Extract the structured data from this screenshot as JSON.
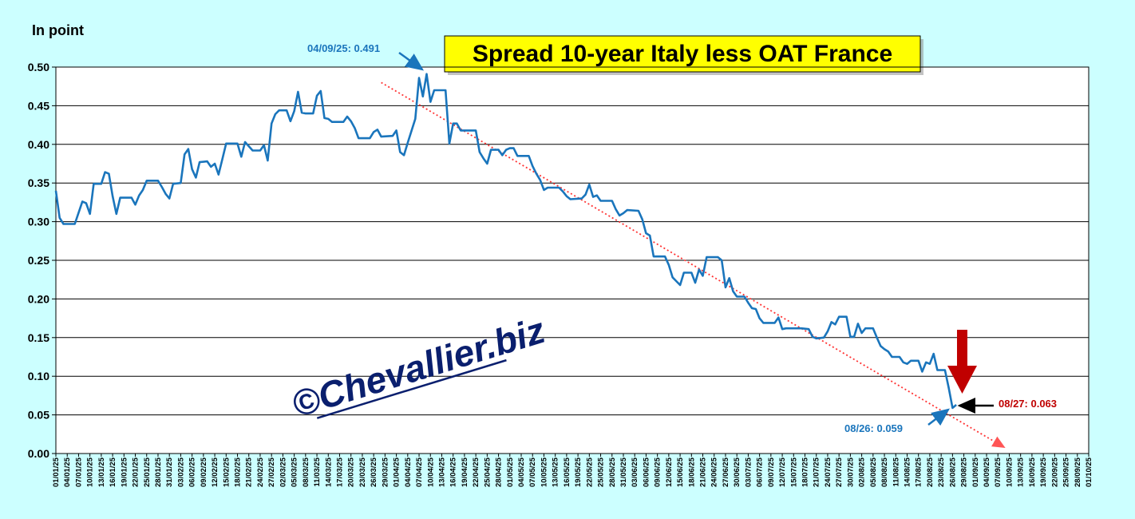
{
  "chart_data": {
    "type": "line",
    "title": "Spread 10-year Italy less OAT France",
    "y_label": "In point",
    "watermark": "©Chevallier.biz",
    "annotations": [
      "04/09/25: 0.491",
      "08/26: 0.059",
      "08/27: 0.063"
    ],
    "ylim": [
      0,
      0.5
    ],
    "yticks": [
      {
        "value": 0,
        "label": "0.00"
      },
      0.05,
      {
        "value": 0.1,
        "label": "0.10"
      },
      0.15,
      {
        "value": 0.2,
        "label": "0.20"
      },
      0.25,
      {
        "value": 0.3,
        "label": "0.30"
      },
      0.35,
      {
        "value": 0.4,
        "label": "0.40"
      },
      0.45,
      {
        "value": 0.5,
        "label": "0.50"
      }
    ],
    "grid": true,
    "xlim": [
      "01/01/25",
      "01/10/25"
    ],
    "xticks": [
      "01/01/25",
      "04/01/25",
      "07/01/25",
      "10/01/25",
      "13/01/25",
      "16/01/25",
      "19/01/25",
      "22/01/25",
      "25/01/25",
      "28/01/25",
      "31/01/25",
      "03/02/25",
      "06/02/25",
      "09/02/25",
      "12/02/25",
      "15/02/25",
      "18/02/25",
      "21/02/25",
      "24/02/25",
      "27/02/25",
      "02/03/25",
      "05/03/25",
      "08/03/25",
      "11/03/25",
      "14/03/25",
      "17/03/25",
      "20/03/25",
      "23/03/25",
      "26/03/25",
      "29/03/25",
      "01/04/25",
      "04/04/25",
      "07/04/25",
      "10/04/25",
      "13/04/25",
      "16/04/25",
      "19/04/25",
      "22/04/25",
      "25/04/25",
      "28/04/25",
      "01/05/25",
      "04/05/25",
      "07/05/25",
      "10/05/25",
      "13/05/25",
      "16/05/25",
      "19/05/25",
      "22/05/25",
      "25/05/25",
      "28/05/25",
      "31/05/25",
      "03/06/25",
      "06/06/25",
      "09/06/25",
      "12/06/25",
      "15/06/25",
      "18/06/25",
      "21/06/25",
      "24/06/25",
      "27/06/25",
      "30/06/25",
      "03/07/25",
      "06/07/25",
      "09/07/25",
      "12/07/25",
      "15/07/25",
      "18/07/25",
      "21/07/25",
      "24/07/25",
      "27/07/25",
      "30/07/25",
      "02/08/25",
      "05/08/25",
      "08/08/25",
      "11/08/25",
      "14/08/25",
      "17/08/25",
      "20/08/25",
      "23/08/25",
      "26/08/25",
      "29/08/25",
      "01/09/25",
      "04/09/25",
      "07/09/25",
      "10/09/25",
      "13/09/25",
      "16/09/25",
      "19/09/25",
      "22/09/25",
      "25/09/25",
      "28/09/25",
      "01/10/25"
    ],
    "series": [
      {
        "color": "#1a75bc",
        "x": [
          "01/01/25",
          "02/01/25",
          "03/01/25",
          "06/01/25",
          "08/01/25",
          "09/01/25",
          "10/01/25",
          "11/01/25",
          "13/01/25",
          "14/01/25",
          "15/01/25",
          "16/01/25",
          "17/01/25",
          "18/01/25",
          "21/01/25",
          "22/01/25",
          "23/01/25",
          "24/01/25",
          "25/01/25",
          "28/01/25",
          "29/01/25",
          "30/01/25",
          "31/01/25",
          "01/02/25",
          "03/02/25",
          "04/02/25",
          "05/02/25",
          "06/02/25",
          "07/02/25",
          "08/02/25",
          "10/02/25",
          "11/02/25",
          "12/02/25",
          "13/02/25",
          "14/02/25",
          "15/02/25",
          "18/02/25",
          "19/02/25",
          "20/02/25",
          "22/02/25",
          "24/02/25",
          "25/02/25",
          "26/02/25",
          "27/02/25",
          "28/02/25",
          "01/03/25",
          "03/03/25",
          "04/03/25",
          "05/03/25",
          "06/03/25",
          "07/03/25",
          "08/03/25",
          "10/03/25",
          "11/03/25",
          "12/03/25",
          "13/03/25",
          "14/03/25",
          "15/03/25",
          "18/03/25",
          "19/03/25",
          "20/03/25",
          "21/03/25",
          "22/03/25",
          "25/03/25",
          "26/03/25",
          "27/03/25",
          "28/03/25",
          "31/03/25",
          "01/04/25",
          "02/04/25",
          "03/04/25",
          "04/04/25",
          "06/04/25",
          "07/04/25",
          "08/04/25",
          "09/04/25",
          "10/04/25",
          "11/04/25",
          "14/04/25",
          "15/04/25",
          "16/04/25",
          "17/04/25",
          "18/04/25",
          "22/04/25",
          "23/04/25",
          "24/04/25",
          "25/04/25",
          "26/04/25",
          "28/04/25",
          "29/04/25",
          "30/04/25",
          "01/05/25",
          "02/05/25",
          "03/05/25",
          "06/05/25",
          "07/05/25",
          "08/05/25",
          "09/05/25",
          "10/05/25",
          "11/05/25",
          "14/05/25",
          "15/05/25",
          "16/05/25",
          "17/05/25",
          "20/05/25",
          "21/05/25",
          "22/05/25",
          "23/05/25",
          "24/05/25",
          "25/05/25",
          "28/05/25",
          "29/05/25",
          "30/05/25",
          "31/05/25",
          "01/06/25",
          "04/06/25",
          "05/06/25",
          "06/06/25",
          "07/06/25",
          "08/06/25",
          "11/06/25",
          "12/06/25",
          "13/06/25",
          "14/06/25",
          "15/06/25",
          "16/06/25",
          "18/06/25",
          "19/06/25",
          "20/06/25",
          "21/06/25",
          "22/06/25",
          "25/06/25",
          "26/06/25",
          "27/06/25",
          "28/06/25",
          "29/06/25",
          "30/06/25",
          "02/07/25",
          "03/07/25",
          "04/07/25",
          "05/07/25",
          "06/07/25",
          "07/07/25",
          "10/07/25",
          "11/07/25",
          "12/07/25",
          "13/07/25",
          "17/07/25",
          "19/07/25",
          "20/07/25",
          "21/07/25",
          "23/07/25",
          "24/07/25",
          "25/07/25",
          "26/07/25",
          "27/07/25",
          "29/07/25",
          "30/07/25",
          "31/07/25",
          "01/08/25",
          "02/08/25",
          "03/08/25",
          "05/08/25",
          "06/08/25",
          "07/08/25",
          "08/08/25",
          "09/08/25",
          "10/08/25",
          "12/08/25",
          "13/08/25",
          "14/08/25",
          "15/08/25",
          "17/08/25",
          "18/08/25",
          "19/08/25",
          "20/08/25",
          "21/08/25",
          "22/08/25",
          "24/08/25",
          "25/08/25",
          "26/08/25",
          "27/08/25"
        ],
        "values": [
          0.34,
          0.305,
          0.297,
          0.297,
          0.326,
          0.324,
          0.31,
          0.349,
          0.349,
          0.364,
          0.362,
          0.333,
          0.31,
          0.331,
          0.331,
          0.322,
          0.334,
          0.341,
          0.353,
          0.353,
          0.345,
          0.336,
          0.33,
          0.349,
          0.35,
          0.387,
          0.394,
          0.368,
          0.357,
          0.377,
          0.378,
          0.371,
          0.375,
          0.361,
          0.381,
          0.401,
          0.401,
          0.384,
          0.403,
          0.392,
          0.392,
          0.399,
          0.379,
          0.427,
          0.439,
          0.444,
          0.444,
          0.43,
          0.443,
          0.468,
          0.441,
          0.44,
          0.44,
          0.463,
          0.469,
          0.434,
          0.433,
          0.429,
          0.429,
          0.436,
          0.43,
          0.421,
          0.408,
          0.408,
          0.416,
          0.419,
          0.41,
          0.411,
          0.418,
          0.39,
          0.386,
          0.402,
          0.433,
          0.486,
          0.462,
          0.491,
          0.455,
          0.47,
          0.47,
          0.401,
          0.427,
          0.427,
          0.418,
          0.418,
          0.39,
          0.382,
          0.375,
          0.393,
          0.393,
          0.386,
          0.393,
          0.395,
          0.395,
          0.385,
          0.385,
          0.372,
          0.362,
          0.354,
          0.341,
          0.344,
          0.344,
          0.339,
          0.333,
          0.329,
          0.33,
          0.335,
          0.348,
          0.332,
          0.334,
          0.327,
          0.327,
          0.316,
          0.308,
          0.311,
          0.315,
          0.314,
          0.303,
          0.285,
          0.282,
          0.255,
          0.255,
          0.244,
          0.228,
          0.223,
          0.218,
          0.234,
          0.234,
          0.221,
          0.238,
          0.23,
          0.254,
          0.254,
          0.25,
          0.215,
          0.227,
          0.21,
          0.203,
          0.203,
          0.195,
          0.188,
          0.187,
          0.175,
          0.169,
          0.169,
          0.176,
          0.161,
          0.162,
          0.162,
          0.161,
          0.151,
          0.149,
          0.15,
          0.158,
          0.17,
          0.167,
          0.177,
          0.177,
          0.151,
          0.151,
          0.168,
          0.156,
          0.162,
          0.162,
          0.15,
          0.139,
          0.135,
          0.132,
          0.125,
          0.125,
          0.118,
          0.116,
          0.12,
          0.12,
          0.106,
          0.118,
          0.116,
          0.129,
          0.108,
          0.108,
          0.085,
          0.059,
          0.063
        ]
      }
    ],
    "trend": {
      "color": "#ff3333",
      "x": [
        "28/03/25",
        "08/09/25"
      ],
      "values": [
        0.48,
        0.01
      ]
    }
  }
}
